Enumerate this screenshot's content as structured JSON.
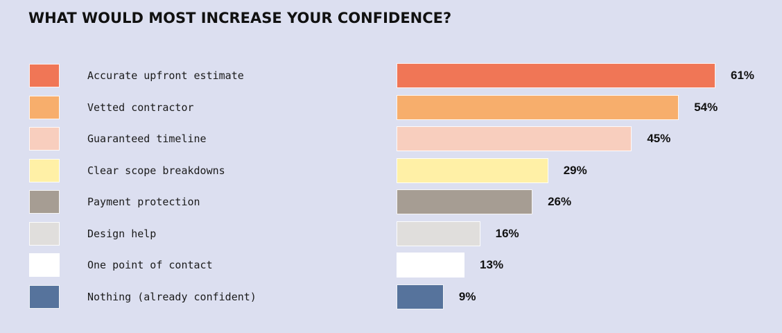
{
  "chart_data": {
    "type": "bar",
    "orientation": "horizontal",
    "title": "WHAT WOULD MOST INCREASE YOUR CONFIDENCE?",
    "categories": [
      "Accurate upfront estimate",
      "Vetted contractor",
      "Guaranteed timeline",
      "Clear scope breakdowns",
      "Payment protection",
      "Design help",
      "One point of contact",
      "Nothing (already confident)"
    ],
    "values": [
      61,
      54,
      45,
      29,
      26,
      16,
      13,
      9
    ],
    "value_labels": [
      "61%",
      "54%",
      "45%",
      "29%",
      "26%",
      "16%",
      "13%",
      "9%"
    ],
    "colors": [
      "#f07656",
      "#f7ae6c",
      "#f8cebe",
      "#fff0a6",
      "#a69d93",
      "#e0dedc",
      "#ffffff",
      "#56739c"
    ],
    "legend": "left",
    "grid": false
  }
}
